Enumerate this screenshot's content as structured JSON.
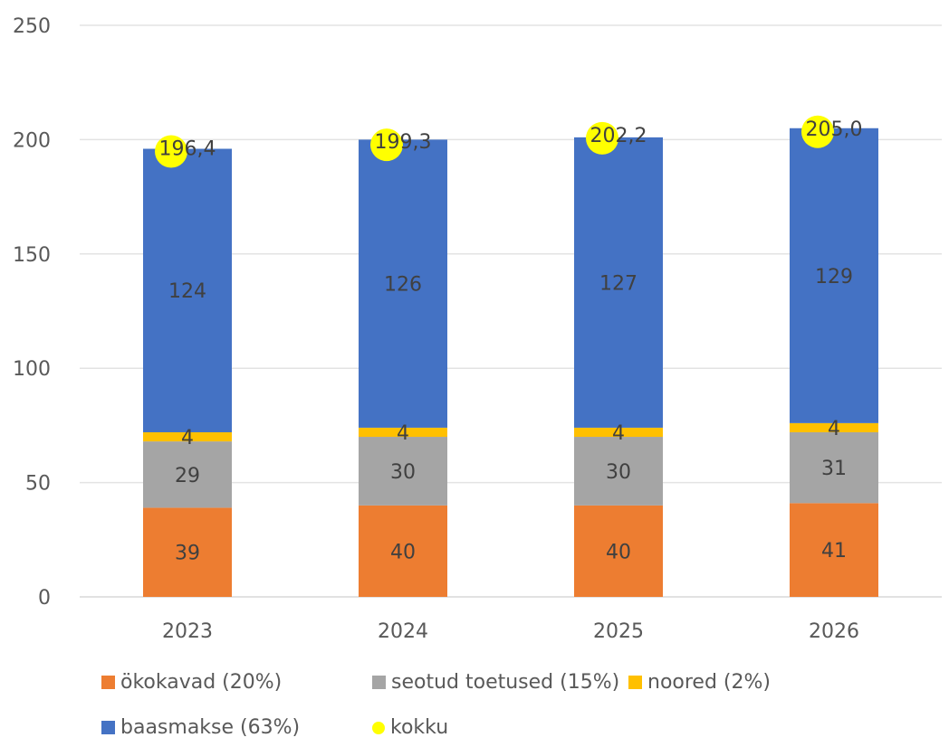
{
  "chart_data": {
    "type": "bar",
    "stacked": true,
    "categories": [
      "2023",
      "2024",
      "2025",
      "2026"
    ],
    "series": [
      {
        "name": "ökokavad (20%)",
        "values": [
          39,
          40,
          40,
          41
        ],
        "labels": [
          "39",
          "40",
          "40",
          "41"
        ],
        "color": "#ED7D31"
      },
      {
        "name": "seotud toetused (15%)",
        "values": [
          29,
          30,
          30,
          31
        ],
        "labels": [
          "29",
          "30",
          "30",
          "31"
        ],
        "color": "#A5A5A5"
      },
      {
        "name": "noored (2%)",
        "values": [
          4,
          4,
          4,
          4
        ],
        "labels": [
          "4",
          "4",
          "4",
          "4"
        ],
        "color": "#FFC000"
      },
      {
        "name": "baasmakse (63%)",
        "values": [
          124,
          126,
          127,
          129
        ],
        "labels": [
          "124",
          "126",
          "127",
          "129"
        ],
        "color": "#4472C4"
      }
    ],
    "totals": {
      "name": "kokku",
      "values": [
        196.4,
        199.3,
        202.2,
        205.0
      ],
      "labels": [
        "196,4",
        "199,3",
        "202,2",
        "205,0"
      ],
      "color": "#FFFF00"
    },
    "y_ticks": [
      "0",
      "50",
      "100",
      "150",
      "200",
      "250"
    ],
    "ylim": [
      0,
      250
    ],
    "grid": true,
    "legend_position": "bottom",
    "title": "",
    "xlabel": "",
    "ylabel": ""
  }
}
